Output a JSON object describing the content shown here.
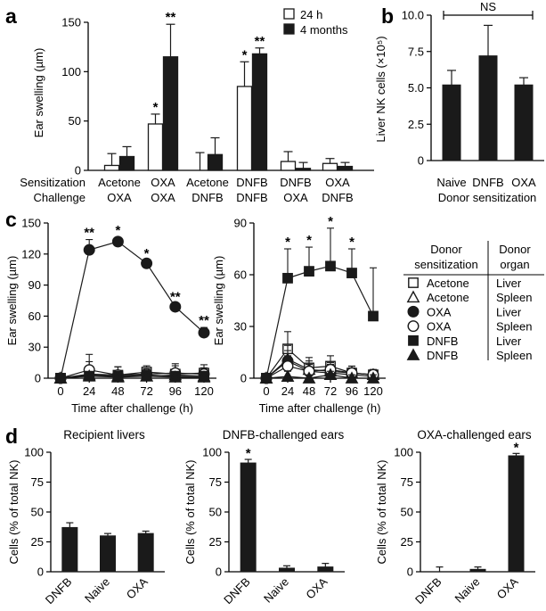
{
  "panels": {
    "a": "a",
    "b": "b",
    "c": "c",
    "d": "d"
  },
  "chart_data": [
    {
      "id": "a",
      "type": "bar",
      "ylabel": "Ear swelling (µm)",
      "ylim": [
        0,
        150
      ],
      "yticks": [
        0,
        50,
        100,
        150
      ],
      "row_labels": {
        "sensitization": "Sensitization",
        "challenge": "Challenge"
      },
      "groups": [
        {
          "sensitization": "Acetone",
          "challenge": "OXA"
        },
        {
          "sensitization": "OXA",
          "challenge": "OXA"
        },
        {
          "sensitization": "Acetone",
          "challenge": "DNFB"
        },
        {
          "sensitization": "DNFB",
          "challenge": "DNFB"
        },
        {
          "sensitization": "DNFB",
          "challenge": "OXA"
        },
        {
          "sensitization": "OXA",
          "challenge": "DNFB"
        }
      ],
      "series": [
        {
          "name": "24 h",
          "fill": "#ffffff",
          "values": [
            5,
            47,
            0,
            85,
            9,
            7
          ],
          "errors": [
            12,
            10,
            18,
            25,
            10,
            5
          ],
          "stars": [
            "",
            "*",
            "",
            "*",
            "",
            ""
          ]
        },
        {
          "name": "4 months",
          "fill": "#1a1a1a",
          "values": [
            14,
            115,
            16,
            118,
            2,
            4
          ],
          "errors": [
            10,
            33,
            17,
            6,
            6,
            4
          ],
          "stars": [
            "",
            "**",
            "",
            "**",
            "",
            ""
          ]
        }
      ]
    },
    {
      "id": "b",
      "type": "bar",
      "ylabel": "Liver NK cells (×10⁵)",
      "xlabel": "Donor sensitization",
      "ylim": [
        0,
        10
      ],
      "yticks": [
        "0",
        "2.5",
        "5.0",
        "7.5",
        "10.0"
      ],
      "categories": [
        "Naive",
        "DNFB",
        "OXA"
      ],
      "values": [
        5.2,
        7.2,
        5.2
      ],
      "errors": [
        1.0,
        2.1,
        0.5
      ],
      "annotation": "NS"
    },
    {
      "id": "c1",
      "type": "line",
      "ylabel": "Ear swelling (µm)",
      "xlabel": "Time after challenge (h)",
      "x": [
        0,
        24,
        48,
        72,
        96,
        120
      ],
      "ylim": [
        0,
        150
      ],
      "yticks": [
        0,
        30,
        60,
        90,
        120,
        150
      ],
      "series": [
        {
          "name": "Acetone Liver",
          "marker": "open-square",
          "values": [
            0,
            4,
            3,
            6,
            4,
            5
          ],
          "errors": [
            0,
            12,
            8,
            6,
            10,
            8
          ]
        },
        {
          "name": "Acetone Spleen",
          "marker": "open-triangle",
          "values": [
            0,
            3,
            2,
            2,
            3,
            2
          ],
          "errors": [
            0,
            6,
            5,
            3,
            4,
            3
          ]
        },
        {
          "name": "OXA Liver",
          "marker": "filled-circle",
          "values": [
            0,
            124,
            132,
            111,
            69,
            44
          ],
          "errors": [
            0,
            10,
            4,
            3,
            3,
            5
          ],
          "stars": [
            "",
            "**",
            "*",
            "*",
            "**",
            "**"
          ]
        },
        {
          "name": "OXA Spleen",
          "marker": "open-circle",
          "values": [
            0,
            8,
            3,
            4,
            5,
            4
          ],
          "errors": [
            0,
            15,
            8,
            5,
            7,
            6
          ]
        },
        {
          "name": "DNFB Liver",
          "marker": "filled-square",
          "values": [
            0,
            2,
            2,
            3,
            2,
            2
          ],
          "errors": [
            0,
            3,
            3,
            3,
            3,
            3
          ]
        },
        {
          "name": "DNFB Spleen",
          "marker": "filled-triangle",
          "values": [
            0,
            2,
            1,
            2,
            1,
            1
          ],
          "errors": [
            0,
            3,
            2,
            2,
            2,
            2
          ]
        }
      ]
    },
    {
      "id": "c2",
      "type": "line",
      "ylabel": "Ear swelling (µm)",
      "xlabel": "Time after challenge (h)",
      "x": [
        0,
        24,
        48,
        72,
        96,
        120
      ],
      "ylim": [
        0,
        90
      ],
      "yticks": [
        0,
        30,
        60,
        90
      ],
      "series": [
        {
          "name": "Acetone Liver",
          "marker": "open-square",
          "values": [
            0,
            17,
            6,
            7,
            3,
            2
          ],
          "errors": [
            0,
            10,
            6,
            6,
            4,
            3
          ]
        },
        {
          "name": "Acetone Spleen",
          "marker": "open-triangle",
          "values": [
            0,
            11,
            5,
            4,
            3,
            2
          ],
          "errors": [
            0,
            8,
            5,
            4,
            4,
            3
          ]
        },
        {
          "name": "OXA Liver",
          "marker": "filled-circle",
          "values": [
            0,
            10,
            4,
            3,
            2,
            1
          ],
          "errors": [
            0,
            6,
            4,
            3,
            3,
            2
          ]
        },
        {
          "name": "OXA Spleen",
          "marker": "open-circle",
          "values": [
            0,
            7,
            4,
            5,
            3,
            2
          ],
          "errors": [
            0,
            6,
            4,
            4,
            3,
            2
          ]
        },
        {
          "name": "DNFB Liver",
          "marker": "filled-square",
          "values": [
            0,
            58,
            62,
            65,
            61,
            36
          ],
          "errors": [
            0,
            17,
            14,
            22,
            14,
            28
          ],
          "stars": [
            "",
            "*",
            "*",
            "*",
            "*",
            ""
          ]
        },
        {
          "name": "DNFB Spleen",
          "marker": "filled-triangle",
          "values": [
            0,
            1,
            0,
            2,
            0,
            0
          ],
          "errors": [
            0,
            3,
            2,
            2,
            2,
            2
          ]
        }
      ]
    },
    {
      "id": "d1",
      "type": "bar",
      "title": "Recipient livers",
      "ylabel": "Cells (% of total NK)",
      "ylim": [
        0,
        100
      ],
      "yticks": [
        0,
        25,
        50,
        75,
        100
      ],
      "categories": [
        "DNFB",
        "Naive",
        "OXA"
      ],
      "values": [
        37,
        30,
        32
      ],
      "errors": [
        4,
        2,
        2
      ],
      "stars": [
        "",
        "",
        ""
      ]
    },
    {
      "id": "d2",
      "type": "bar",
      "title": "DNFB-challenged ears",
      "ylabel": "Cells (% of total NK)",
      "ylim": [
        0,
        100
      ],
      "yticks": [
        0,
        25,
        50,
        75,
        100
      ],
      "categories": [
        "DNFB",
        "Naive",
        "OXA"
      ],
      "values": [
        91,
        3,
        4
      ],
      "errors": [
        3,
        2,
        3
      ],
      "stars": [
        "*",
        "",
        ""
      ]
    },
    {
      "id": "d3",
      "type": "bar",
      "title": "OXA-challenged ears",
      "ylabel": "Cells (% of total NK)",
      "ylim": [
        0,
        100
      ],
      "yticks": [
        0,
        25,
        50,
        75,
        100
      ],
      "categories": [
        "DNFB",
        "Naive",
        "OXA"
      ],
      "values": [
        0,
        2,
        97
      ],
      "errors": [
        4,
        2,
        2
      ],
      "stars": [
        "",
        "",
        "*"
      ]
    }
  ],
  "legend_c": {
    "header_sensitization": [
      "Donor",
      "sensitization"
    ],
    "header_organ": [
      "Donor",
      "organ"
    ],
    "rows": [
      {
        "marker": "open-square",
        "sensitization": "Acetone",
        "organ": "Liver"
      },
      {
        "marker": "open-triangle",
        "sensitization": "Acetone",
        "organ": "Spleen"
      },
      {
        "marker": "filled-circle",
        "sensitization": "OXA",
        "organ": "Liver"
      },
      {
        "marker": "open-circle",
        "sensitization": "OXA",
        "organ": "Spleen"
      },
      {
        "marker": "filled-square",
        "sensitization": "DNFB",
        "organ": "Liver"
      },
      {
        "marker": "filled-triangle",
        "sensitization": "DNFB",
        "organ": "Spleen"
      }
    ]
  }
}
